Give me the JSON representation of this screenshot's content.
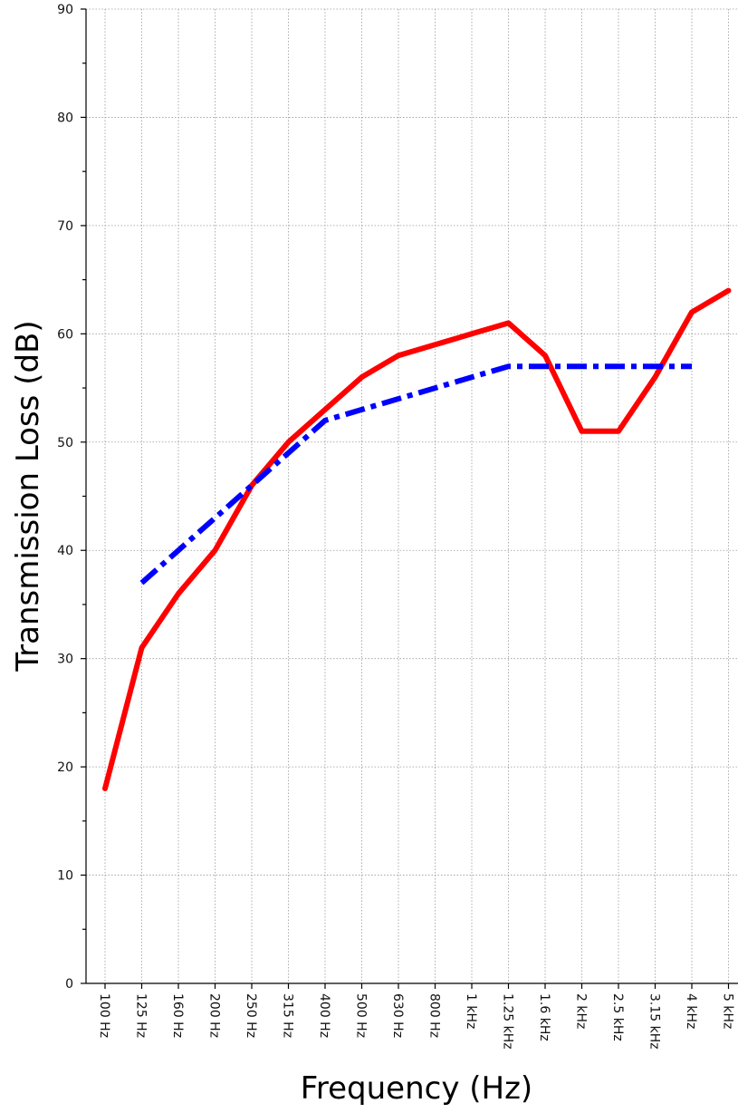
{
  "chart_data": {
    "type": "line",
    "title": "",
    "xlabel": "Frequency (Hz)",
    "ylabel": "Transmission Loss (dB)",
    "categories": [
      "100 Hz",
      "125 Hz",
      "160 Hz",
      "200 Hz",
      "250 Hz",
      "315 Hz",
      "400 Hz",
      "500 Hz",
      "630 Hz",
      "800 Hz",
      "1 kHz",
      "1.25 kHz",
      "1.6 kHz",
      "2 kHz",
      "2.5 kHz",
      "3.15 kHz",
      "4 kHz",
      "5 kHz"
    ],
    "ylim": [
      0,
      90
    ],
    "yticks": [
      0,
      10,
      20,
      30,
      40,
      50,
      60,
      70,
      80,
      90
    ],
    "ytick_labels": [
      "0",
      "10",
      "20",
      "30",
      "40",
      "50",
      "60",
      "70",
      "80",
      "90"
    ],
    "grid": true,
    "legend": "none",
    "series": [
      {
        "color": "#ff0000",
        "style": "solid",
        "values": [
          18,
          31,
          36,
          40,
          46,
          50,
          53,
          56,
          58,
          59,
          60,
          61,
          58,
          51,
          51,
          56,
          62,
          64
        ]
      },
      {
        "color": "#0000ff",
        "style": "dash-dot",
        "values": [
          null,
          37,
          40,
          43,
          46,
          49,
          52,
          53,
          54,
          55,
          56,
          57,
          57,
          57,
          57,
          57,
          57,
          null
        ]
      }
    ]
  }
}
